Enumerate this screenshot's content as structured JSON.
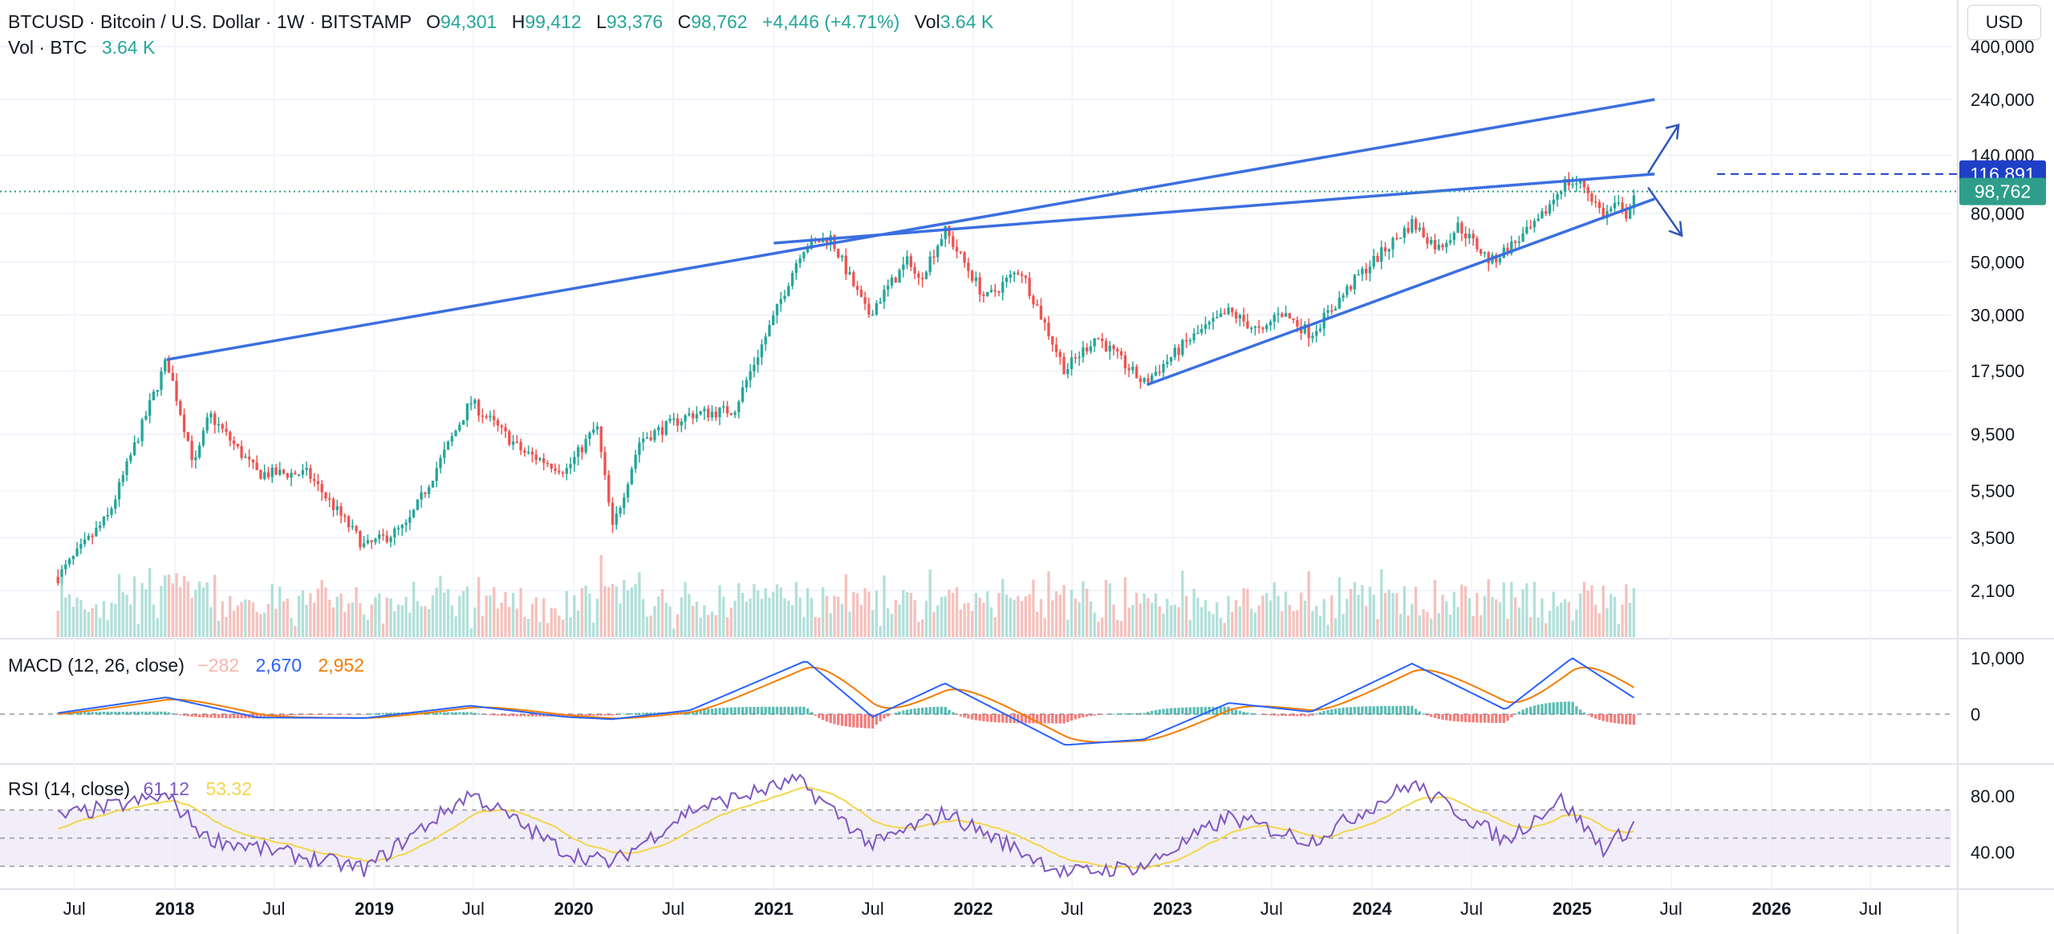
{
  "header": {
    "title": "BTCUSD · Bitcoin / U.S. Dollar · 1W · BITSTAMP",
    "open_label": "O",
    "open": "94,301",
    "high_label": "H",
    "high": "99,412",
    "low_label": "L",
    "low": "93,376",
    "close_label": "C",
    "close": "98,762",
    "change": "+4,446 (+4.71%)",
    "vol_label": "Vol",
    "vol": "3.64 K",
    "vol_row_label": "Vol · BTC",
    "vol_row_value": "3.64 K"
  },
  "currency": "USD",
  "colors": {
    "up": "#26a69a",
    "down": "#ef5350",
    "trendline": "#3b6fe0",
    "macd": "#2962ff",
    "signal": "#f57c00",
    "rsi": "#7e57c2",
    "rsi_ma": "#f2d64b",
    "badge_blue": "#1e40c8",
    "badge_green": "#2e9e8a"
  },
  "chart_data": [
    {
      "type": "candlestick",
      "scale": "log",
      "y_ticks": [
        "400,000",
        "240,000",
        "140,000",
        "80,000",
        "50,000",
        "30,000",
        "17,500",
        "9,500",
        "5,500",
        "3,500",
        "2,100"
      ],
      "x_ticks": [
        "Jul",
        "2018",
        "Jul",
        "2019",
        "Jul",
        "2020",
        "Jul",
        "2021",
        "Jul",
        "2022",
        "Jul",
        "2023",
        "Jul",
        "2024",
        "Jul",
        "2025",
        "Jul",
        "2026",
        "Jul"
      ],
      "price_badges": [
        {
          "label": "116,891",
          "value": 116891,
          "color": "#1e40c8"
        },
        {
          "label": "98,762",
          "value": 98762,
          "color": "#2e9e8a"
        }
      ],
      "anchors": [
        [
          "2017-06-01",
          2400
        ],
        [
          "2017-09-01",
          4300
        ],
        [
          "2017-12-17",
          19500
        ],
        [
          "2018-02-06",
          7000
        ],
        [
          "2018-03-05",
          11500
        ],
        [
          "2018-06-01",
          6500
        ],
        [
          "2018-09-01",
          6500
        ],
        [
          "2018-12-15",
          3200
        ],
        [
          "2019-03-01",
          3900
        ],
        [
          "2019-06-26",
          13000
        ],
        [
          "2019-09-30",
          8000
        ],
        [
          "2019-12-18",
          6700
        ],
        [
          "2020-02-12",
          10300
        ],
        [
          "2020-03-12",
          3800
        ],
        [
          "2020-05-01",
          9000
        ],
        [
          "2020-08-01",
          11500
        ],
        [
          "2020-10-20",
          12000
        ],
        [
          "2020-12-31",
          29000
        ],
        [
          "2021-02-21",
          57000
        ],
        [
          "2021-04-14",
          64000
        ],
        [
          "2021-06-22",
          30000
        ],
        [
          "2021-09-07",
          52000
        ],
        [
          "2021-09-21",
          41000
        ],
        [
          "2021-11-10",
          68000
        ],
        [
          "2022-01-24",
          35000
        ],
        [
          "2022-03-28",
          47000
        ],
        [
          "2022-06-18",
          17600
        ],
        [
          "2022-08-14",
          24500
        ],
        [
          "2022-11-09",
          15500
        ],
        [
          "2023-01-30",
          23500
        ],
        [
          "2023-04-14",
          31000
        ],
        [
          "2023-06-15",
          25000
        ],
        [
          "2023-07-13",
          31500
        ],
        [
          "2023-09-11",
          25000
        ],
        [
          "2023-12-08",
          44000
        ],
        [
          "2024-03-14",
          73000
        ],
        [
          "2024-05-01",
          57000
        ],
        [
          "2024-06-07",
          71000
        ],
        [
          "2024-08-05",
          50000
        ],
        [
          "2024-10-29",
          72000
        ],
        [
          "2024-12-17",
          108000
        ],
        [
          "2025-01-21",
          106000
        ],
        [
          "2025-02-28",
          78000
        ],
        [
          "2025-03-24",
          88000
        ],
        [
          "2025-04-07",
          76000
        ],
        [
          "2025-04-21",
          93000
        ],
        [
          "2025-04-28",
          98762
        ]
      ],
      "trendlines": [
        {
          "from": [
            "2017-12-17",
            19500
          ],
          "to": [
            "2025-06-01",
            240000
          ]
        },
        {
          "from": [
            "2021-01-01",
            60000
          ],
          "to": [
            "2025-06-01",
            116891
          ]
        },
        {
          "from": [
            "2022-11-15",
            15300
          ],
          "to": [
            "2025-06-01",
            92000
          ]
        }
      ]
    },
    {
      "type": "line",
      "name": "MACD (12, 26, close)",
      "values_shown": {
        "histogram": "−282",
        "macd": "2,670",
        "signal": "2,952"
      },
      "y_ticks": [
        "10,000",
        "0"
      ],
      "anchors": [
        [
          "2017-06-01",
          200
        ],
        [
          "2017-12-17",
          3000
        ],
        [
          "2018-06-01",
          -600
        ],
        [
          "2018-12-15",
          -700
        ],
        [
          "2019-06-26",
          1500
        ],
        [
          "2019-12-18",
          -500
        ],
        [
          "2020-03-12",
          -900
        ],
        [
          "2020-08-01",
          700
        ],
        [
          "2021-03-01",
          9500
        ],
        [
          "2021-07-01",
          -500
        ],
        [
          "2021-11-10",
          5500
        ],
        [
          "2022-06-18",
          -5500
        ],
        [
          "2022-11-09",
          -4500
        ],
        [
          "2023-04-14",
          2000
        ],
        [
          "2023-09-11",
          400
        ],
        [
          "2024-03-14",
          9000
        ],
        [
          "2024-09-01",
          800
        ],
        [
          "2025-01-01",
          10000
        ],
        [
          "2025-04-28",
          2670
        ]
      ]
    },
    {
      "type": "line",
      "name": "RSI (14, close)",
      "values_shown": {
        "rsi": "61.12",
        "rsi_ma": "53.32"
      },
      "y_ticks": [
        "80.00",
        "40.00"
      ],
      "bands": [
        70,
        50,
        30
      ],
      "anchors": [
        [
          "2017-06-01",
          65
        ],
        [
          "2017-12-17",
          80
        ],
        [
          "2018-03-01",
          50
        ],
        [
          "2018-12-15",
          28
        ],
        [
          "2019-06-26",
          82
        ],
        [
          "2019-12-18",
          40
        ],
        [
          "2020-03-12",
          32
        ],
        [
          "2020-08-01",
          70
        ],
        [
          "2021-02-15",
          91
        ],
        [
          "2021-07-01",
          45
        ],
        [
          "2021-11-10",
          68
        ],
        [
          "2022-06-18",
          25
        ],
        [
          "2022-11-09",
          30
        ],
        [
          "2023-04-14",
          65
        ],
        [
          "2023-09-11",
          48
        ],
        [
          "2024-03-14",
          89
        ],
        [
          "2024-09-01",
          48
        ],
        [
          "2024-12-10",
          78
        ],
        [
          "2025-03-01",
          42
        ],
        [
          "2025-04-28",
          61.12
        ]
      ]
    }
  ]
}
